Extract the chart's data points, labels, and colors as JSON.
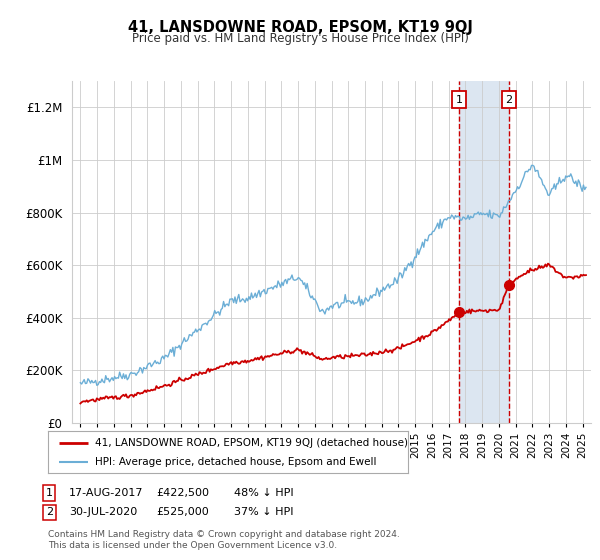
{
  "title": "41, LANSDOWNE ROAD, EPSOM, KT19 9QJ",
  "subtitle": "Price paid vs. HM Land Registry's House Price Index (HPI)",
  "ylabel_ticks": [
    "£0",
    "£200K",
    "£400K",
    "£600K",
    "£800K",
    "£1M",
    "£1.2M"
  ],
  "ytick_vals": [
    0,
    200000,
    400000,
    600000,
    800000,
    1000000,
    1200000
  ],
  "ylim": [
    0,
    1300000
  ],
  "xlim_start": 1994.5,
  "xlim_end": 2025.5,
  "hpi_color": "#6baed6",
  "price_color": "#cc0000",
  "marker1_date": 2017.633,
  "marker1_price": 422500,
  "marker1_label": "1",
  "marker2_date": 2020.583,
  "marker2_price": 525000,
  "marker2_label": "2",
  "legend_line1": "41, LANSDOWNE ROAD, EPSOM, KT19 9QJ (detached house)",
  "legend_line2": "HPI: Average price, detached house, Epsom and Ewell",
  "table_row1_num": "1",
  "table_row1_date": "17-AUG-2017",
  "table_row1_price": "£422,500",
  "table_row1_pct": "48% ↓ HPI",
  "table_row2_num": "2",
  "table_row2_date": "30-JUL-2020",
  "table_row2_price": "£525,000",
  "table_row2_pct": "37% ↓ HPI",
  "footer1": "Contains HM Land Registry data © Crown copyright and database right 2024.",
  "footer2": "This data is licensed under the Open Government Licence v3.0.",
  "background_color": "#ffffff",
  "shaded_color": "#dce6f1",
  "grid_color": "#cccccc",
  "border_color": "#aaaaaa"
}
